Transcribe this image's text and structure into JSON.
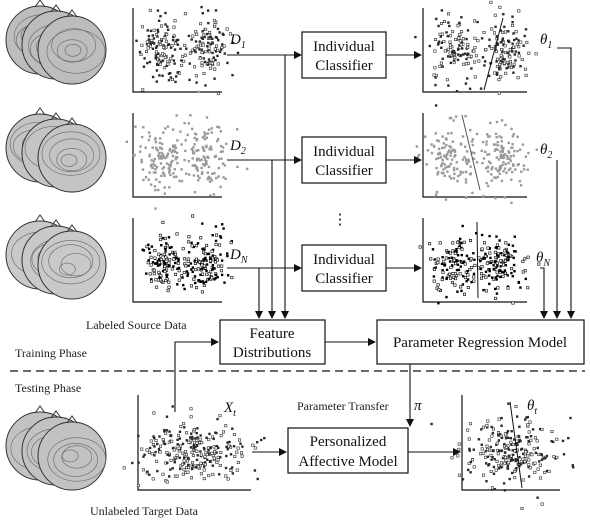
{
  "labels": {
    "source_data": "Labeled Source Data",
    "target_data": "Unlabeled Target Data",
    "training_phase": "Training Phase",
    "testing_phase": "Testing Phase",
    "parameter_transfer": "Parameter Transfer"
  },
  "boxes": {
    "individual_classifier_line1": "Individual",
    "individual_classifier_line2": "Classifier",
    "feature_distributions_line1": "Feature",
    "feature_distributions_line2": "Distributions",
    "parameter_regression_model": "Parameter Regression Model",
    "personalized_line1": "Personalized",
    "personalized_line2": "Affective Model"
  },
  "variables": {
    "d_base": "D",
    "d1_sub": "1",
    "d2_sub": "2",
    "dn_sub": "N",
    "theta": "θ",
    "theta1_sub": "1",
    "theta2_sub": "2",
    "thetan_sub": "N",
    "thetat_sub": "t",
    "x_base": "X",
    "x_sub": "t",
    "pi": "π",
    "ellipsis": "⋮"
  },
  "colors": {
    "line": "#111111",
    "dark_points": "#2a2a2a",
    "light_points": "#9a9a9a",
    "black_points": "#000000"
  }
}
